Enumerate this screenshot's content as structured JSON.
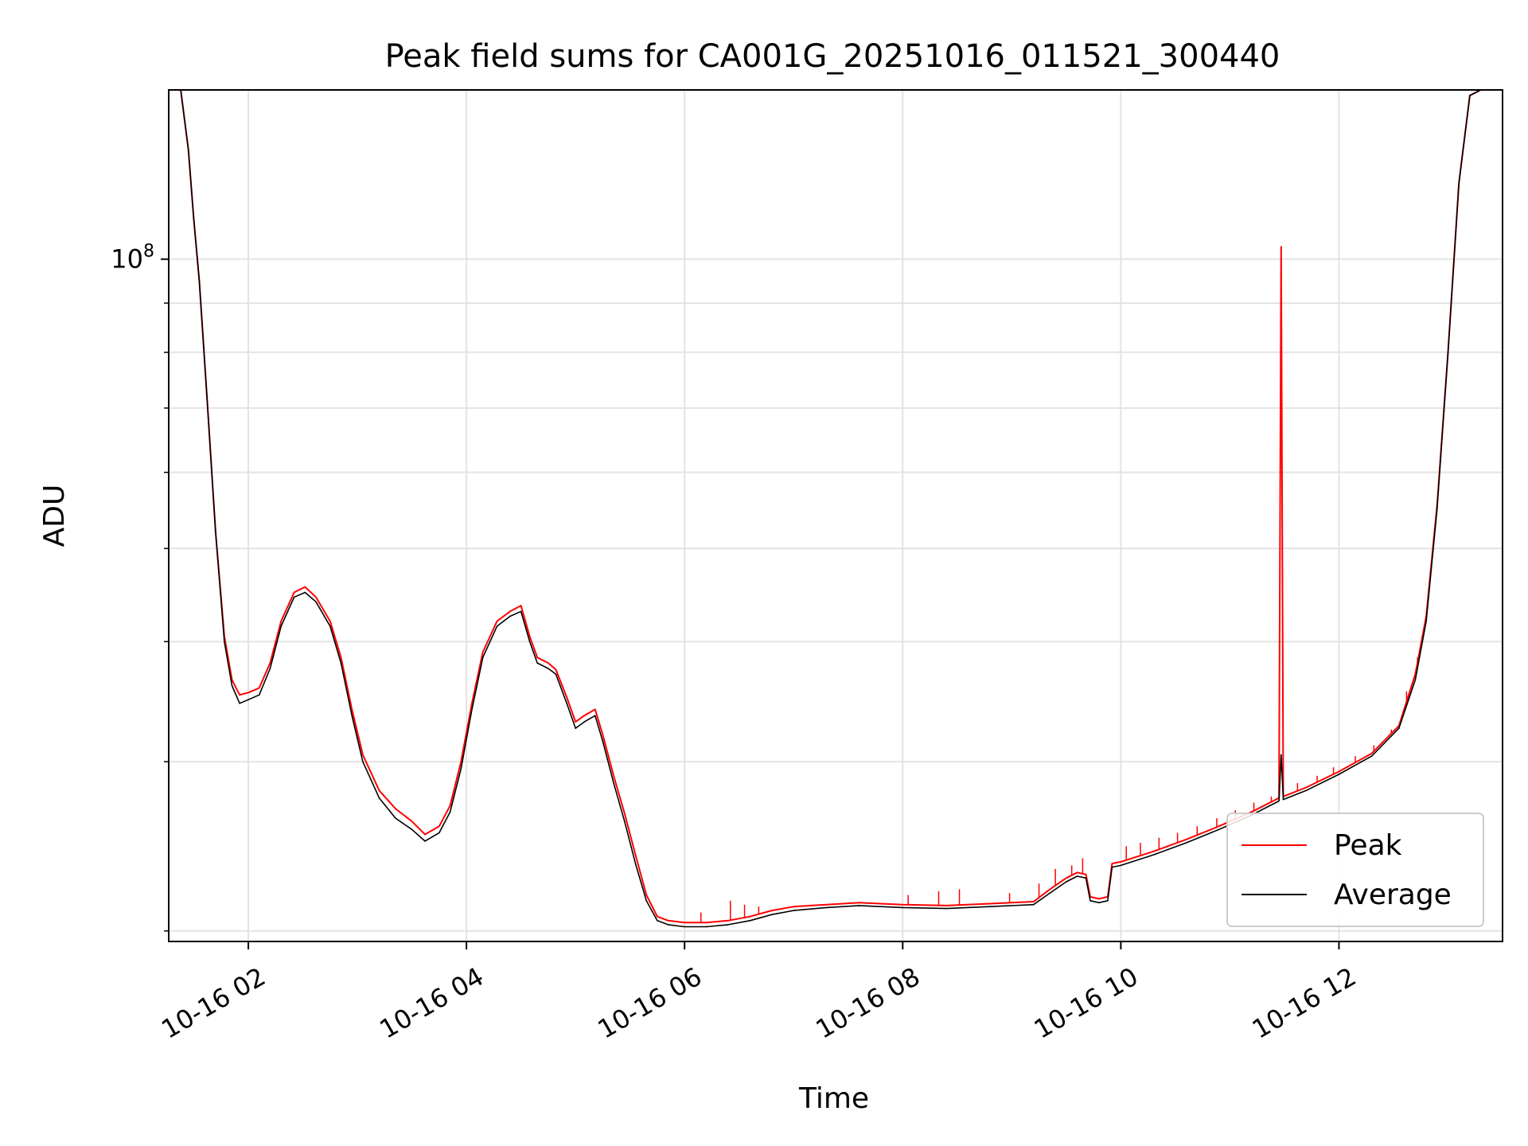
{
  "chart_data": {
    "type": "line",
    "title": "Peak field sums for CA001G_20251016_011521_300440",
    "xlabel": "Time",
    "ylabel": "ADU",
    "yscale": "log",
    "grid": true,
    "legend_position": "lower-right",
    "x_unit": "hours after 2025-10-16 00:00",
    "xlim": [
      1.27,
      13.5
    ],
    "ylim": [
      19500000,
      150000000
    ],
    "x_ticks": [
      {
        "value": 2,
        "label": "10-16 02"
      },
      {
        "value": 4,
        "label": "10-16 04"
      },
      {
        "value": 6,
        "label": "10-16 06"
      },
      {
        "value": 8,
        "label": "10-16 08"
      },
      {
        "value": 10,
        "label": "10-16 10"
      },
      {
        "value": 12,
        "label": "10-16 12"
      }
    ],
    "y_major_ticks": [
      {
        "value": 100000000,
        "base": "10",
        "exponent": "8"
      }
    ],
    "y_minor_ticks": [
      20000000,
      30000000,
      40000000,
      50000000,
      60000000,
      70000000,
      80000000,
      90000000
    ],
    "series": [
      {
        "name": "Average",
        "color": "#000000",
        "points": [
          [
            1.27,
            150000000
          ],
          [
            1.38,
            150000000
          ],
          [
            1.45,
            130000000
          ],
          [
            1.5,
            110000000
          ],
          [
            1.55,
            95000000
          ],
          [
            1.62,
            72000000
          ],
          [
            1.7,
            52000000
          ],
          [
            1.78,
            40000000
          ],
          [
            1.85,
            36000000
          ],
          [
            1.92,
            34500000
          ],
          [
            2.0,
            34800000
          ],
          [
            2.1,
            35200000
          ],
          [
            2.2,
            37500000
          ],
          [
            2.3,
            41500000
          ],
          [
            2.42,
            44500000
          ],
          [
            2.52,
            45000000
          ],
          [
            2.62,
            44000000
          ],
          [
            2.75,
            41500000
          ],
          [
            2.85,
            38000000
          ],
          [
            2.95,
            33500000
          ],
          [
            3.05,
            30000000
          ],
          [
            3.2,
            27500000
          ],
          [
            3.35,
            26200000
          ],
          [
            3.5,
            25500000
          ],
          [
            3.62,
            24800000
          ],
          [
            3.75,
            25300000
          ],
          [
            3.85,
            26600000
          ],
          [
            3.95,
            29500000
          ],
          [
            4.05,
            34000000
          ],
          [
            4.15,
            38500000
          ],
          [
            4.28,
            41500000
          ],
          [
            4.4,
            42500000
          ],
          [
            4.5,
            43000000
          ],
          [
            4.58,
            40000000
          ],
          [
            4.65,
            38000000
          ],
          [
            4.75,
            37500000
          ],
          [
            4.82,
            37000000
          ],
          [
            4.92,
            34500000
          ],
          [
            5.0,
            32500000
          ],
          [
            5.08,
            33000000
          ],
          [
            5.18,
            33500000
          ],
          [
            5.25,
            31500000
          ],
          [
            5.35,
            28500000
          ],
          [
            5.45,
            26000000
          ],
          [
            5.55,
            23500000
          ],
          [
            5.65,
            21500000
          ],
          [
            5.75,
            20500000
          ],
          [
            5.85,
            20300000
          ],
          [
            6.0,
            20200000
          ],
          [
            6.2,
            20200000
          ],
          [
            6.4,
            20300000
          ],
          [
            6.6,
            20500000
          ],
          [
            6.8,
            20800000
          ],
          [
            7.0,
            21000000
          ],
          [
            7.3,
            21150000
          ],
          [
            7.6,
            21250000
          ],
          [
            8.0,
            21150000
          ],
          [
            8.4,
            21100000
          ],
          [
            8.8,
            21200000
          ],
          [
            9.2,
            21300000
          ],
          [
            9.35,
            21900000
          ],
          [
            9.5,
            22500000
          ],
          [
            9.6,
            22800000
          ],
          [
            9.68,
            22700000
          ],
          [
            9.72,
            21500000
          ],
          [
            9.8,
            21400000
          ],
          [
            9.88,
            21500000
          ],
          [
            9.92,
            23300000
          ],
          [
            10.0,
            23400000
          ],
          [
            10.3,
            24000000
          ],
          [
            10.6,
            24700000
          ],
          [
            10.9,
            25500000
          ],
          [
            11.2,
            26400000
          ],
          [
            11.45,
            27300000
          ],
          [
            11.47,
            30500000
          ],
          [
            11.49,
            27400000
          ],
          [
            11.7,
            28000000
          ],
          [
            12.0,
            29100000
          ],
          [
            12.3,
            30400000
          ],
          [
            12.55,
            32500000
          ],
          [
            12.7,
            36500000
          ],
          [
            12.8,
            42000000
          ],
          [
            12.9,
            55000000
          ],
          [
            13.0,
            80000000
          ],
          [
            13.1,
            120000000
          ],
          [
            13.2,
            148000000
          ],
          [
            13.3,
            150000000
          ],
          [
            13.5,
            150000000
          ]
        ]
      },
      {
        "name": "Peak",
        "color": "#ff0000",
        "points": [
          [
            1.27,
            150000000
          ],
          [
            1.38,
            150000000
          ],
          [
            1.45,
            130000000
          ],
          [
            1.5,
            110000000
          ],
          [
            1.55,
            95000000
          ],
          [
            1.62,
            72000000
          ],
          [
            1.7,
            52000000
          ],
          [
            1.78,
            40500000
          ],
          [
            1.85,
            36500000
          ],
          [
            1.92,
            35200000
          ],
          [
            2.0,
            35400000
          ],
          [
            2.1,
            35800000
          ],
          [
            2.2,
            38000000
          ],
          [
            2.3,
            42000000
          ],
          [
            2.42,
            45000000
          ],
          [
            2.52,
            45600000
          ],
          [
            2.62,
            44500000
          ],
          [
            2.75,
            42000000
          ],
          [
            2.85,
            38500000
          ],
          [
            2.95,
            34000000
          ],
          [
            3.05,
            30500000
          ],
          [
            3.2,
            28000000
          ],
          [
            3.35,
            26800000
          ],
          [
            3.5,
            26000000
          ],
          [
            3.62,
            25200000
          ],
          [
            3.75,
            25700000
          ],
          [
            3.85,
            27000000
          ],
          [
            3.95,
            30000000
          ],
          [
            4.05,
            34500000
          ],
          [
            4.15,
            39000000
          ],
          [
            4.28,
            42000000
          ],
          [
            4.4,
            43000000
          ],
          [
            4.5,
            43600000
          ],
          [
            4.58,
            40500000
          ],
          [
            4.65,
            38500000
          ],
          [
            4.75,
            38000000
          ],
          [
            4.82,
            37400000
          ],
          [
            4.92,
            35000000
          ],
          [
            5.0,
            33000000
          ],
          [
            5.08,
            33500000
          ],
          [
            5.18,
            34000000
          ],
          [
            5.25,
            32000000
          ],
          [
            5.35,
            29000000
          ],
          [
            5.45,
            26500000
          ],
          [
            5.55,
            24000000
          ],
          [
            5.65,
            21800000
          ],
          [
            5.75,
            20700000
          ],
          [
            5.85,
            20500000
          ],
          [
            6.0,
            20400000
          ],
          [
            6.2,
            20400000
          ],
          [
            6.4,
            20500000
          ],
          [
            6.6,
            20700000
          ],
          [
            6.8,
            21000000
          ],
          [
            7.0,
            21200000
          ],
          [
            7.3,
            21300000
          ],
          [
            7.6,
            21400000
          ],
          [
            8.0,
            21300000
          ],
          [
            8.4,
            21250000
          ],
          [
            8.8,
            21350000
          ],
          [
            9.2,
            21450000
          ],
          [
            9.35,
            22100000
          ],
          [
            9.5,
            22700000
          ],
          [
            9.6,
            23000000
          ],
          [
            9.68,
            22900000
          ],
          [
            9.72,
            21700000
          ],
          [
            9.8,
            21600000
          ],
          [
            9.88,
            21700000
          ],
          [
            9.92,
            23500000
          ],
          [
            10.0,
            23600000
          ],
          [
            10.3,
            24200000
          ],
          [
            10.6,
            24900000
          ],
          [
            10.9,
            25700000
          ],
          [
            11.2,
            26600000
          ],
          [
            11.45,
            27500000
          ],
          [
            11.47,
            103000000
          ],
          [
            11.49,
            27600000
          ],
          [
            11.7,
            28200000
          ],
          [
            12.0,
            29300000
          ],
          [
            12.3,
            30600000
          ],
          [
            12.55,
            32700000
          ],
          [
            12.7,
            37000000
          ],
          [
            12.8,
            42500000
          ],
          [
            12.9,
            55500000
          ],
          [
            13.0,
            80000000
          ],
          [
            13.1,
            120000000
          ],
          [
            13.2,
            148000000
          ],
          [
            13.3,
            150000000
          ],
          [
            13.5,
            150000000
          ]
        ],
        "spikes": [
          [
            6.15,
            20900000
          ],
          [
            6.42,
            21500000
          ],
          [
            6.55,
            21300000
          ],
          [
            6.68,
            21200000
          ],
          [
            8.05,
            21800000
          ],
          [
            8.33,
            22000000
          ],
          [
            8.52,
            22100000
          ],
          [
            8.98,
            21900000
          ],
          [
            9.25,
            22400000
          ],
          [
            9.4,
            23200000
          ],
          [
            9.55,
            23400000
          ],
          [
            9.65,
            23800000
          ],
          [
            10.05,
            24500000
          ],
          [
            10.18,
            24700000
          ],
          [
            10.35,
            25000000
          ],
          [
            10.52,
            25300000
          ],
          [
            10.7,
            25700000
          ],
          [
            10.88,
            26200000
          ],
          [
            11.05,
            26700000
          ],
          [
            11.22,
            27200000
          ],
          [
            11.38,
            27600000
          ],
          [
            11.62,
            28500000
          ],
          [
            11.8,
            29000000
          ],
          [
            11.95,
            29600000
          ],
          [
            12.15,
            30400000
          ],
          [
            12.32,
            31200000
          ],
          [
            12.48,
            32400000
          ],
          [
            12.62,
            35500000
          ],
          [
            12.72,
            38500000
          ]
        ]
      }
    ]
  }
}
